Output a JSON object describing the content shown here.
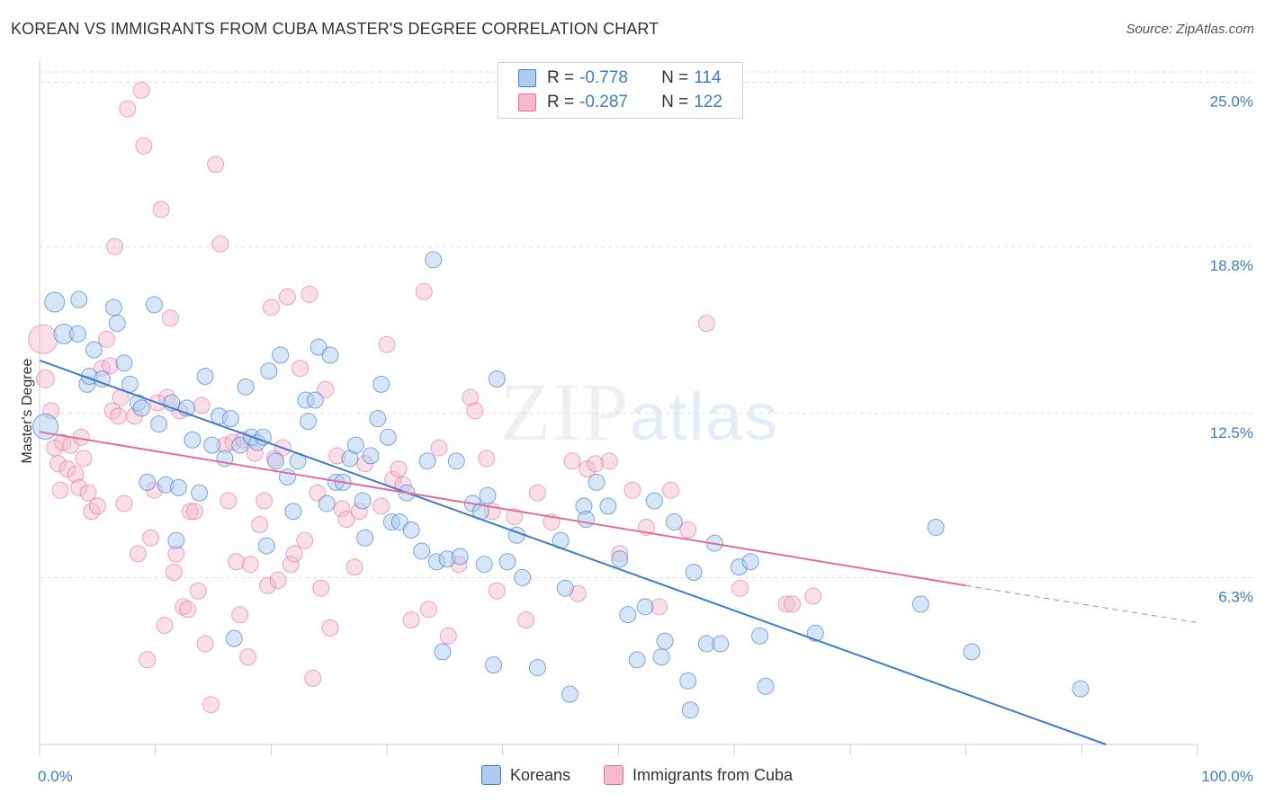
{
  "title": "KOREAN VS IMMIGRANTS FROM CUBA MASTER'S DEGREE CORRELATION CHART",
  "source": "Source: ZipAtlas.com",
  "watermark": {
    "part1": "ZIP",
    "part2": "atlas"
  },
  "colors": {
    "koreans": "#3d7cc9",
    "koreans_fill": "#aecbf0",
    "cuba": "#e0709a",
    "cuba_fill": "#f5b8cc",
    "grid": "#dddddd",
    "tick_text": "#3d7cc9"
  },
  "legend": {
    "rows": [
      {
        "r_label": "R = ",
        "r_value": "-0.778",
        "n_label": "N = ",
        "n_value": "114"
      },
      {
        "r_label": "R = ",
        "r_value": "-0.287",
        "n_label": "N = ",
        "n_value": "122"
      }
    ]
  },
  "bottom_legend": {
    "koreans": "Koreans",
    "cuba": "Immigrants from Cuba"
  },
  "chart_data": {
    "type": "scatter",
    "title": "KOREAN VS IMMIGRANTS FROM CUBA MASTER'S DEGREE CORRELATION CHART",
    "xlabel": "",
    "ylabel": "Master's Degree",
    "xlim": [
      0,
      100
    ],
    "ylim": [
      0,
      25.8
    ],
    "x_tick_labels": [
      "0.0%",
      "100.0%"
    ],
    "y_ticks": [
      6.3,
      12.5,
      18.8,
      25.0
    ],
    "y_tick_labels": [
      "6.3%",
      "12.5%",
      "18.8%",
      "25.0%"
    ],
    "grid": "horizontal dashed",
    "legend_position": "top-center",
    "series": [
      {
        "name": "Koreans",
        "color": "#3d7cc9",
        "R": -0.778,
        "N": 114,
        "trend": {
          "x": [
            0,
            92.1
          ],
          "y": [
            14.5,
            0
          ]
        },
        "points": [
          [
            0.5,
            12.0,
            14
          ],
          [
            1.3,
            16.7,
            11
          ],
          [
            2.1,
            15.5,
            11
          ],
          [
            3.3,
            15.5,
            9
          ],
          [
            3.4,
            16.8,
            9
          ],
          [
            4.1,
            13.6,
            9
          ],
          [
            4.3,
            13.9,
            9
          ],
          [
            4.7,
            14.9,
            9
          ],
          [
            5.4,
            13.8,
            9
          ],
          [
            6.4,
            16.5,
            9
          ],
          [
            6.7,
            15.9,
            9
          ],
          [
            7.3,
            14.4,
            9
          ],
          [
            7.8,
            13.6,
            9
          ],
          [
            8.5,
            12.9,
            9
          ],
          [
            8.8,
            12.7,
            9
          ],
          [
            9.3,
            9.9,
            9
          ],
          [
            9.9,
            16.6,
            9
          ],
          [
            10.3,
            12.1,
            9
          ],
          [
            10.9,
            9.8,
            9
          ],
          [
            11.4,
            12.9,
            9
          ],
          [
            11.8,
            7.7,
            9
          ],
          [
            12.0,
            9.7,
            9
          ],
          [
            12.7,
            12.7,
            9
          ],
          [
            13.2,
            11.5,
            9
          ],
          [
            13.8,
            9.5,
            9
          ],
          [
            14.3,
            13.9,
            9
          ],
          [
            14.9,
            11.3,
            9
          ],
          [
            15.5,
            12.4,
            9
          ],
          [
            16.0,
            10.8,
            9
          ],
          [
            16.5,
            12.3,
            9
          ],
          [
            16.8,
            4.0,
            9
          ],
          [
            17.3,
            11.3,
            9
          ],
          [
            17.8,
            13.5,
            9
          ],
          [
            18.3,
            11.6,
            9
          ],
          [
            18.8,
            11.4,
            9
          ],
          [
            19.3,
            11.6,
            9
          ],
          [
            19.6,
            7.5,
            9
          ],
          [
            19.8,
            14.1,
            9
          ],
          [
            20.4,
            10.7,
            9
          ],
          [
            20.8,
            14.7,
            9
          ],
          [
            21.4,
            10.1,
            9
          ],
          [
            21.9,
            8.8,
            9
          ],
          [
            22.3,
            10.7,
            9
          ],
          [
            23.0,
            13.0,
            9
          ],
          [
            23.2,
            12.2,
            9
          ],
          [
            23.8,
            13.0,
            9
          ],
          [
            24.1,
            15.0,
            9
          ],
          [
            24.8,
            9.1,
            9
          ],
          [
            25.1,
            14.7,
            9
          ],
          [
            25.6,
            9.9,
            9
          ],
          [
            26.2,
            9.9,
            9
          ],
          [
            26.8,
            10.8,
            9
          ],
          [
            27.3,
            11.3,
            9
          ],
          [
            27.9,
            9.2,
            9
          ],
          [
            28.1,
            7.8,
            9
          ],
          [
            28.6,
            10.9,
            9
          ],
          [
            29.2,
            12.3,
            9
          ],
          [
            29.5,
            13.6,
            9
          ],
          [
            30.1,
            11.6,
            9
          ],
          [
            30.4,
            8.4,
            9
          ],
          [
            31.1,
            8.4,
            9
          ],
          [
            31.7,
            9.5,
            9
          ],
          [
            32.1,
            8.1,
            9
          ],
          [
            33.0,
            7.3,
            9
          ],
          [
            33.5,
            10.7,
            9
          ],
          [
            34.0,
            18.3,
            9
          ],
          [
            34.3,
            6.9,
            9
          ],
          [
            34.8,
            3.5,
            9
          ],
          [
            35.2,
            7.0,
            9
          ],
          [
            36.0,
            10.7,
            9
          ],
          [
            36.3,
            7.1,
            9
          ],
          [
            37.4,
            9.1,
            9
          ],
          [
            38.1,
            8.8,
            9
          ],
          [
            38.4,
            6.8,
            9
          ],
          [
            38.7,
            9.4,
            9
          ],
          [
            39.2,
            3.0,
            9
          ],
          [
            39.5,
            13.8,
            9
          ],
          [
            40.4,
            6.9,
            9
          ],
          [
            41.2,
            7.9,
            9
          ],
          [
            41.7,
            6.3,
            9
          ],
          [
            43.0,
            2.9,
            9
          ],
          [
            45.0,
            7.7,
            9
          ],
          [
            45.4,
            5.9,
            9
          ],
          [
            45.8,
            1.9,
            9
          ],
          [
            47.0,
            9.0,
            9
          ],
          [
            47.2,
            8.5,
            9
          ],
          [
            48.1,
            9.9,
            9
          ],
          [
            49.1,
            9.0,
            9
          ],
          [
            50.1,
            7.0,
            9
          ],
          [
            50.8,
            4.9,
            9
          ],
          [
            51.6,
            3.2,
            9
          ],
          [
            52.3,
            5.2,
            9
          ],
          [
            53.1,
            9.2,
            9
          ],
          [
            53.7,
            3.3,
            9
          ],
          [
            54.0,
            3.9,
            9
          ],
          [
            54.8,
            8.4,
            9
          ],
          [
            56.0,
            2.4,
            9
          ],
          [
            56.2,
            1.3,
            9
          ],
          [
            56.5,
            6.5,
            9
          ],
          [
            57.6,
            3.8,
            9
          ],
          [
            58.3,
            7.6,
            9
          ],
          [
            58.8,
            3.8,
            9
          ],
          [
            60.4,
            6.7,
            9
          ],
          [
            61.4,
            6.9,
            9
          ],
          [
            62.2,
            4.1,
            9
          ],
          [
            62.7,
            2.2,
            9
          ],
          [
            67.0,
            4.2,
            9
          ],
          [
            76.1,
            5.3,
            9
          ],
          [
            77.4,
            8.2,
            9
          ],
          [
            80.5,
            3.5,
            9
          ],
          [
            89.9,
            2.1,
            9
          ]
        ]
      },
      {
        "name": "Immigrants from Cuba",
        "color": "#e0709a",
        "R": -0.287,
        "N": 122,
        "trend": {
          "x": [
            0,
            80
          ],
          "y": [
            11.8,
            6.0
          ]
        },
        "trend_dashed": {
          "x": [
            80,
            100
          ],
          "y": [
            6.0,
            4.6
          ]
        },
        "points": [
          [
            0.3,
            15.3,
            16
          ],
          [
            0.5,
            13.8,
            10
          ],
          [
            1.0,
            12.6,
            9
          ],
          [
            1.3,
            11.2,
            9
          ],
          [
            1.6,
            10.6,
            9
          ],
          [
            1.8,
            9.6,
            9
          ],
          [
            2.0,
            11.4,
            9
          ],
          [
            2.4,
            10.4,
            9
          ],
          [
            2.7,
            11.3,
            9
          ],
          [
            3.1,
            10.2,
            9
          ],
          [
            3.4,
            9.7,
            9
          ],
          [
            3.6,
            11.6,
            9
          ],
          [
            3.8,
            10.8,
            9
          ],
          [
            4.2,
            9.5,
            9
          ],
          [
            4.5,
            8.8,
            9
          ],
          [
            5.0,
            9.0,
            9
          ],
          [
            5.4,
            14.2,
            9
          ],
          [
            5.8,
            15.3,
            9
          ],
          [
            6.1,
            14.3,
            9
          ],
          [
            6.3,
            12.6,
            9
          ],
          [
            6.5,
            18.8,
            9
          ],
          [
            6.8,
            12.4,
            9
          ],
          [
            7.0,
            13.1,
            9
          ],
          [
            7.3,
            9.1,
            9
          ],
          [
            7.6,
            24.0,
            9
          ],
          [
            8.2,
            12.4,
            9
          ],
          [
            8.5,
            7.2,
            9
          ],
          [
            8.8,
            24.7,
            9
          ],
          [
            9.0,
            22.6,
            9
          ],
          [
            9.3,
            3.2,
            9
          ],
          [
            9.6,
            7.8,
            9
          ],
          [
            9.9,
            9.6,
            9
          ],
          [
            10.2,
            12.9,
            9
          ],
          [
            10.5,
            20.2,
            9
          ],
          [
            10.8,
            4.5,
            9
          ],
          [
            11.0,
            13.1,
            9
          ],
          [
            11.3,
            16.1,
            9
          ],
          [
            11.6,
            6.5,
            9
          ],
          [
            11.8,
            7.2,
            9
          ],
          [
            12.1,
            12.6,
            9
          ],
          [
            12.4,
            5.2,
            9
          ],
          [
            12.8,
            5.1,
            9
          ],
          [
            13.0,
            8.8,
            9
          ],
          [
            13.4,
            8.8,
            9
          ],
          [
            13.7,
            5.8,
            9
          ],
          [
            14.0,
            12.8,
            9
          ],
          [
            14.3,
            3.8,
            9
          ],
          [
            14.8,
            1.5,
            9
          ],
          [
            15.2,
            21.9,
            9
          ],
          [
            15.6,
            18.9,
            9
          ],
          [
            16.0,
            11.3,
            9
          ],
          [
            16.3,
            9.2,
            9
          ],
          [
            16.7,
            11.4,
            9
          ],
          [
            17.0,
            6.9,
            9
          ],
          [
            17.3,
            4.9,
            9
          ],
          [
            17.6,
            11.5,
            9
          ],
          [
            18.0,
            3.3,
            9
          ],
          [
            18.2,
            6.8,
            9
          ],
          [
            18.6,
            11.0,
            9
          ],
          [
            19.0,
            8.3,
            9
          ],
          [
            19.4,
            9.2,
            9
          ],
          [
            19.7,
            6.0,
            9
          ],
          [
            20.0,
            16.5,
            9
          ],
          [
            20.3,
            10.8,
            9
          ],
          [
            20.6,
            6.2,
            9
          ],
          [
            21.0,
            11.2,
            9
          ],
          [
            21.4,
            16.9,
            9
          ],
          [
            21.7,
            6.8,
            9
          ],
          [
            22.0,
            7.2,
            9
          ],
          [
            22.5,
            14.2,
            9
          ],
          [
            22.9,
            7.7,
            9
          ],
          [
            23.3,
            17.0,
            9
          ],
          [
            23.6,
            2.5,
            9
          ],
          [
            24.0,
            9.5,
            9
          ],
          [
            24.3,
            5.9,
            9
          ],
          [
            24.7,
            13.4,
            9
          ],
          [
            25.1,
            4.4,
            9
          ],
          [
            25.7,
            10.9,
            9
          ],
          [
            26.1,
            8.9,
            9
          ],
          [
            26.5,
            8.5,
            9
          ],
          [
            27.2,
            6.7,
            9
          ],
          [
            27.6,
            8.8,
            9
          ],
          [
            28.1,
            10.6,
            9
          ],
          [
            29.5,
            9.0,
            9
          ],
          [
            30.0,
            15.1,
            9
          ],
          [
            30.5,
            10.0,
            9
          ],
          [
            31.0,
            10.4,
            9
          ],
          [
            31.4,
            9.8,
            9
          ],
          [
            32.1,
            4.7,
            9
          ],
          [
            33.2,
            17.1,
            9
          ],
          [
            33.6,
            5.1,
            9
          ],
          [
            34.5,
            11.2,
            9
          ],
          [
            35.3,
            4.1,
            9
          ],
          [
            36.2,
            6.8,
            9
          ],
          [
            37.2,
            13.1,
            9
          ],
          [
            37.6,
            12.6,
            9
          ],
          [
            38.6,
            10.8,
            9
          ],
          [
            39.1,
            8.8,
            9
          ],
          [
            39.5,
            5.8,
            9
          ],
          [
            41.0,
            8.6,
            9
          ],
          [
            42.0,
            4.7,
            9
          ],
          [
            43.0,
            9.5,
            9
          ],
          [
            44.2,
            8.4,
            9
          ],
          [
            46.0,
            10.7,
            9
          ],
          [
            46.5,
            5.7,
            9
          ],
          [
            47.3,
            10.4,
            9
          ],
          [
            48.0,
            10.6,
            9
          ],
          [
            49.2,
            10.7,
            9
          ],
          [
            50.1,
            7.2,
            9
          ],
          [
            51.2,
            9.6,
            9
          ],
          [
            52.4,
            8.2,
            9
          ],
          [
            53.5,
            5.2,
            9
          ],
          [
            54.5,
            9.6,
            9
          ],
          [
            56.0,
            8.1,
            9
          ],
          [
            57.6,
            15.9,
            9
          ],
          [
            60.5,
            5.9,
            9
          ],
          [
            64.5,
            5.3,
            9
          ],
          [
            65.0,
            5.3,
            9
          ],
          [
            66.8,
            5.6,
            9
          ]
        ]
      }
    ]
  }
}
